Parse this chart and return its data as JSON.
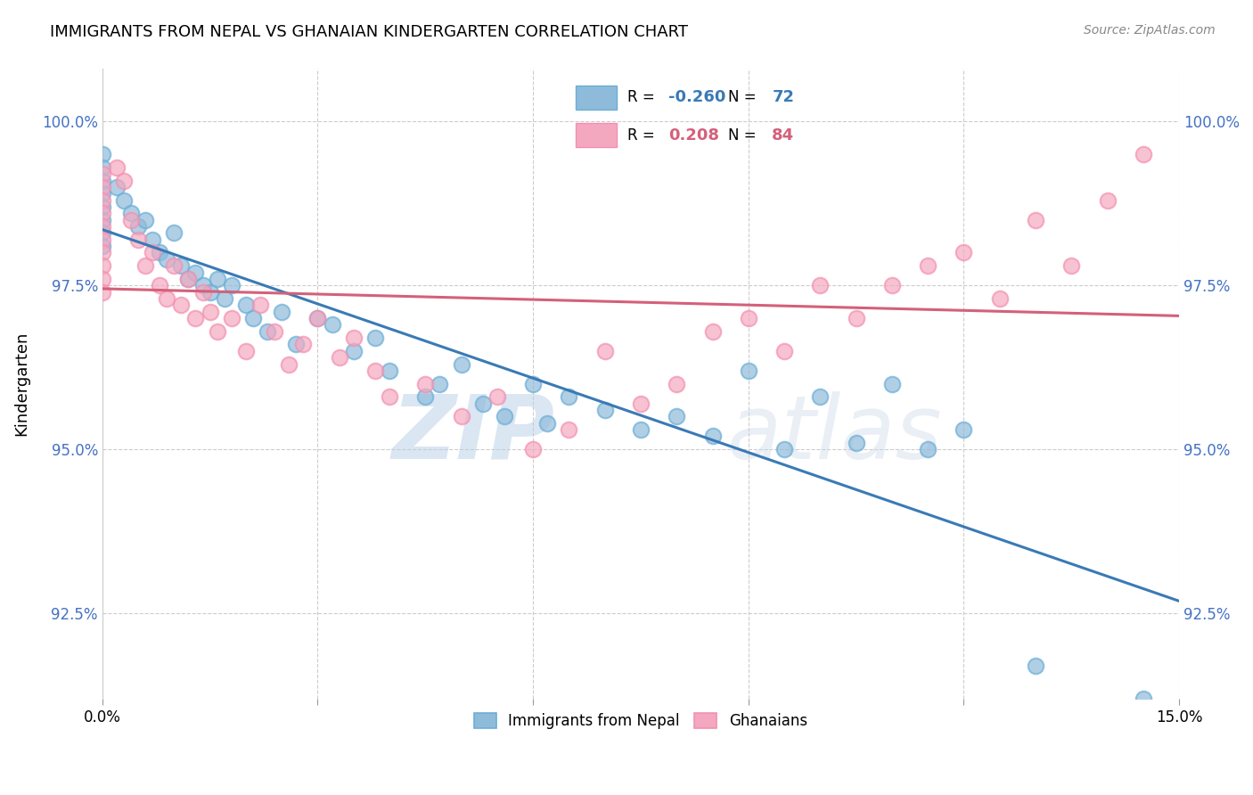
{
  "title": "IMMIGRANTS FROM NEPAL VS GHANAIAN KINDERGARTEN CORRELATION CHART",
  "source": "Source: ZipAtlas.com",
  "ylabel": "Kindergarten",
  "y_ticks": [
    92.5,
    95.0,
    97.5,
    100.0
  ],
  "y_tick_labels": [
    "92.5%",
    "95.0%",
    "97.5%",
    "100.0%"
  ],
  "x_min": 0.0,
  "x_max": 15.0,
  "y_min": 91.2,
  "y_max": 100.8,
  "R_blue": -0.26,
  "N_blue": 72,
  "R_pink": 0.208,
  "N_pink": 84,
  "legend_label_blue": "Immigrants from Nepal",
  "legend_label_pink": "Ghanaians",
  "blue_color": "#8fbbda",
  "pink_color": "#f4a8bf",
  "blue_edge_color": "#6baed6",
  "pink_edge_color": "#f48fb1",
  "blue_line_color": "#3a7ab5",
  "pink_line_color": "#d4607a",
  "watermark_zip": "ZIP",
  "watermark_atlas": "atlas",
  "blue_scatter_x": [
    0.0,
    0.0,
    0.0,
    0.0,
    0.0,
    0.0,
    0.0,
    0.0,
    0.2,
    0.3,
    0.4,
    0.5,
    0.6,
    0.7,
    0.8,
    0.9,
    1.0,
    1.1,
    1.2,
    1.3,
    1.4,
    1.5,
    1.6,
    1.7,
    1.8,
    2.0,
    2.1,
    2.3,
    2.5,
    2.7,
    3.0,
    3.2,
    3.5,
    3.8,
    4.0,
    4.5,
    4.7,
    5.0,
    5.3,
    5.6,
    6.0,
    6.2,
    6.5,
    7.0,
    7.5,
    8.0,
    8.5,
    9.0,
    9.5,
    10.0,
    10.5,
    11.0,
    11.5,
    12.0,
    13.0,
    14.5
  ],
  "blue_scatter_y": [
    99.5,
    99.3,
    99.1,
    98.9,
    98.7,
    98.5,
    98.3,
    98.1,
    99.0,
    98.8,
    98.6,
    98.4,
    98.5,
    98.2,
    98.0,
    97.9,
    98.3,
    97.8,
    97.6,
    97.7,
    97.5,
    97.4,
    97.6,
    97.3,
    97.5,
    97.2,
    97.0,
    96.8,
    97.1,
    96.6,
    97.0,
    96.9,
    96.5,
    96.7,
    96.2,
    95.8,
    96.0,
    96.3,
    95.7,
    95.5,
    96.0,
    95.4,
    95.8,
    95.6,
    95.3,
    95.5,
    95.2,
    96.2,
    95.0,
    95.8,
    95.1,
    96.0,
    95.0,
    95.3,
    91.7,
    91.2
  ],
  "pink_scatter_x": [
    0.0,
    0.0,
    0.0,
    0.0,
    0.0,
    0.0,
    0.0,
    0.0,
    0.0,
    0.0,
    0.2,
    0.3,
    0.4,
    0.5,
    0.6,
    0.7,
    0.8,
    0.9,
    1.0,
    1.1,
    1.2,
    1.3,
    1.4,
    1.5,
    1.6,
    1.8,
    2.0,
    2.2,
    2.4,
    2.6,
    2.8,
    3.0,
    3.3,
    3.5,
    3.8,
    4.0,
    4.5,
    5.0,
    5.5,
    6.0,
    6.5,
    7.0,
    7.5,
    8.0,
    8.5,
    9.0,
    9.5,
    10.0,
    10.5,
    11.0,
    11.5,
    12.0,
    12.5,
    13.0,
    13.5,
    14.0,
    14.5
  ],
  "pink_scatter_y": [
    99.2,
    99.0,
    98.8,
    98.6,
    98.4,
    98.2,
    98.0,
    97.8,
    97.6,
    97.4,
    99.3,
    99.1,
    98.5,
    98.2,
    97.8,
    98.0,
    97.5,
    97.3,
    97.8,
    97.2,
    97.6,
    97.0,
    97.4,
    97.1,
    96.8,
    97.0,
    96.5,
    97.2,
    96.8,
    96.3,
    96.6,
    97.0,
    96.4,
    96.7,
    96.2,
    95.8,
    96.0,
    95.5,
    95.8,
    95.0,
    95.3,
    96.5,
    95.7,
    96.0,
    96.8,
    97.0,
    96.5,
    97.5,
    97.0,
    97.5,
    97.8,
    98.0,
    97.3,
    98.5,
    97.8,
    98.8,
    99.5
  ],
  "x_tick_positions": [
    0.0,
    0.03,
    0.06,
    0.09,
    0.12,
    0.15
  ]
}
